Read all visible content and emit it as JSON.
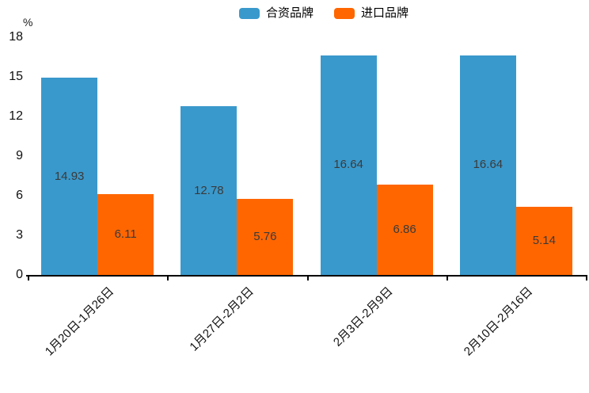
{
  "chart_data": {
    "type": "bar",
    "title": "",
    "unit": "%",
    "categories": [
      "1月20日-1月26日",
      "1月27日-2月2日",
      "2月3日-2月9日",
      "2月10日-2月16日"
    ],
    "series": [
      {
        "name": "合资品牌",
        "color": "#3A99CC",
        "values": [
          14.93,
          12.78,
          16.64,
          16.64
        ]
      },
      {
        "name": "进口品牌",
        "color": "#FF6600",
        "values": [
          6.11,
          5.76,
          6.86,
          5.14
        ]
      }
    ],
    "ylim": [
      0,
      18
    ],
    "yticks": [
      0,
      3,
      6,
      9,
      12,
      15,
      18
    ],
    "legend_position": "top-center",
    "grid": false,
    "value_label_position": "inside-center",
    "value_label_decimals": 2,
    "xlabel_rotation": -45
  }
}
